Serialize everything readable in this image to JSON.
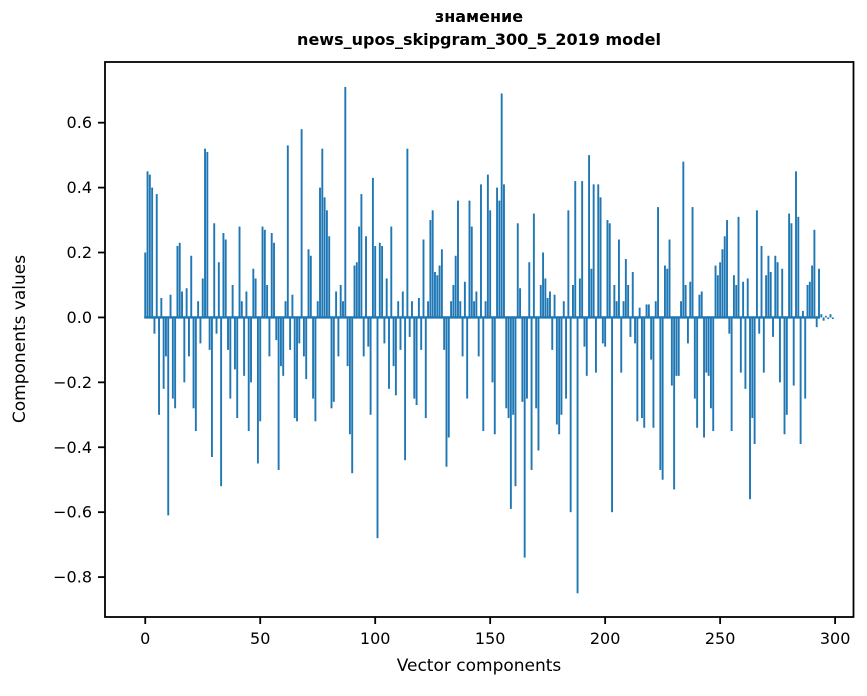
{
  "chart_data": {
    "type": "bar",
    "title_line1": "знамение",
    "title_line2": "news_upos_skipgram_300_5_2019 model",
    "xlabel": "Vector components",
    "ylabel": "Components values",
    "x_ticks": [
      0,
      50,
      100,
      150,
      200,
      250,
      300
    ],
    "y_ticks": [
      0.6,
      0.4,
      0.2,
      0.0,
      -0.2,
      -0.4,
      -0.6,
      -0.8
    ],
    "xlim": [
      -17.5,
      308
    ],
    "ylim": [
      -0.923,
      0.787
    ],
    "bar_color": "#1f77b4",
    "axis_color": "#000000",
    "grid": false,
    "legend": false,
    "x_label_meaning": "vector component index",
    "values": [
      0.2,
      0.45,
      0.44,
      0.4,
      -0.05,
      0.38,
      -0.3,
      0.06,
      -0.22,
      -0.12,
      -0.61,
      0.07,
      -0.25,
      -0.28,
      0.22,
      0.23,
      0.08,
      -0.2,
      0.09,
      -0.12,
      0.19,
      -0.28,
      -0.35,
      0.05,
      -0.08,
      0.12,
      0.52,
      0.51,
      -0.1,
      -0.43,
      0.29,
      -0.05,
      0.17,
      -0.52,
      0.26,
      0.24,
      -0.1,
      -0.25,
      0.1,
      -0.16,
      -0.31,
      0.28,
      0.05,
      -0.18,
      0.08,
      -0.35,
      -0.2,
      0.15,
      0.12,
      -0.45,
      -0.32,
      0.28,
      0.27,
      0.1,
      -0.12,
      0.26,
      0.23,
      -0.07,
      -0.47,
      -0.15,
      -0.18,
      0.05,
      0.53,
      -0.1,
      0.07,
      -0.31,
      -0.32,
      -0.08,
      0.58,
      -0.12,
      -0.19,
      0.21,
      0.19,
      -0.25,
      -0.32,
      0.05,
      0.4,
      0.52,
      0.37,
      0.33,
      0.25,
      -0.28,
      -0.26,
      0.08,
      -0.12,
      0.1,
      0.05,
      0.71,
      -0.15,
      -0.36,
      -0.48,
      0.16,
      0.17,
      0.28,
      0.38,
      -0.12,
      0.25,
      -0.09,
      -0.3,
      0.43,
      0.22,
      -0.68,
      0.23,
      0.22,
      -0.08,
      0.12,
      -0.22,
      0.28,
      -0.15,
      -0.24,
      0.05,
      -0.1,
      0.08,
      -0.44,
      0.52,
      -0.06,
      0.05,
      -0.25,
      -0.27,
      0.06,
      -0.1,
      0.24,
      -0.31,
      0.05,
      0.3,
      0.33,
      0.14,
      0.13,
      0.16,
      0.21,
      -0.1,
      -0.46,
      -0.37,
      0.05,
      0.1,
      0.19,
      0.36,
      0.05,
      -0.12,
      0.11,
      -0.25,
      0.36,
      0.28,
      0.05,
      0.08,
      -0.12,
      0.41,
      -0.35,
      0.05,
      0.44,
      0.33,
      -0.2,
      -0.36,
      0.4,
      0.36,
      0.69,
      0.41,
      -0.28,
      -0.31,
      -0.59,
      -0.3,
      -0.52,
      0.29,
      0.09,
      -0.26,
      -0.74,
      -0.25,
      0.17,
      -0.47,
      0.32,
      -0.28,
      -0.41,
      0.1,
      0.2,
      0.12,
      0.06,
      0.08,
      -0.1,
      0.07,
      -0.33,
      -0.36,
      -0.3,
      0.05,
      -0.25,
      0.33,
      -0.6,
      0.1,
      0.42,
      -0.85,
      0.12,
      0.42,
      -0.09,
      -0.18,
      0.5,
      0.15,
      0.41,
      -0.17,
      0.41,
      0.37,
      -0.08,
      -0.09,
      0.3,
      0.29,
      -0.6,
      0.1,
      0.05,
      0.24,
      -0.17,
      0.05,
      0.18,
      0.1,
      -0.06,
      0.14,
      -0.08,
      -0.32,
      0.03,
      -0.31,
      -0.34,
      0.04,
      0.04,
      -0.13,
      -0.34,
      0.05,
      0.34,
      -0.47,
      -0.5,
      0.16,
      0.15,
      0.24,
      -0.21,
      -0.53,
      -0.18,
      -0.18,
      0.05,
      0.48,
      0.1,
      -0.08,
      0.11,
      0.34,
      -0.25,
      -0.34,
      0.07,
      0.08,
      -0.37,
      -0.17,
      -0.18,
      -0.28,
      -0.35,
      0.16,
      0.13,
      0.17,
      0.21,
      0.25,
      0.3,
      -0.05,
      -0.35,
      0.13,
      0.1,
      0.31,
      -0.17,
      0.11,
      -0.22,
      0.12,
      -0.56,
      -0.31,
      -0.39,
      0.33,
      -0.05,
      0.22,
      -0.17,
      0.13,
      0.19,
      0.14,
      -0.06,
      0.19,
      0.17,
      -0.2,
      0.15,
      -0.36,
      -0.3,
      0.32,
      0.29,
      -0.21,
      0.45,
      0.31,
      -0.39,
      0.02,
      -0.25,
      0.1,
      0.11,
      0.16,
      0.27,
      -0.03,
      0.15,
      0.01,
      -0.01,
      0.005,
      -0.005,
      0.01,
      -0.005
    ]
  }
}
